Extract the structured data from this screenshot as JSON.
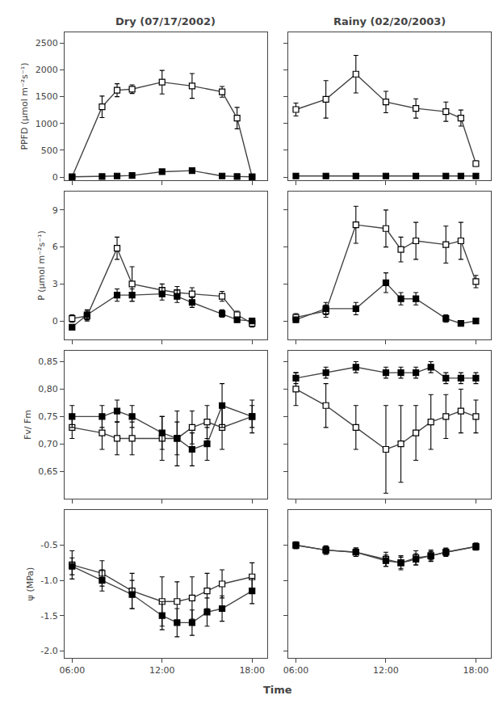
{
  "chart_data": [
    {
      "type": "line",
      "title": "Dry (07/17/2002)",
      "ylabel": "PPFD (μmol m⁻²s⁻¹)",
      "color": "#444444",
      "grid": false,
      "tick_labels": "y",
      "xlim": [
        5.5,
        19.0
      ],
      "xticks": [
        6,
        12,
        18
      ],
      "ylim": [
        -60,
        2700
      ],
      "yticks": [
        0,
        500,
        1000,
        1500,
        2000,
        2500
      ],
      "x": [
        6.0,
        8.0,
        9.0,
        10.0,
        12.0,
        14.0,
        16.0,
        17.0,
        18.0
      ],
      "series": [
        {
          "marker": "open",
          "values": [
            5,
            1310,
            1620,
            1640,
            1770,
            1700,
            1590,
            1100,
            5
          ],
          "errors": [
            5,
            200,
            120,
            80,
            220,
            230,
            100,
            200,
            5
          ]
        },
        {
          "marker": "filled",
          "values": [
            5,
            10,
            20,
            30,
            100,
            120,
            20,
            10,
            5
          ],
          "errors": [
            2,
            5,
            5,
            5,
            20,
            20,
            5,
            5,
            2
          ]
        }
      ]
    },
    {
      "type": "line",
      "title": "Rainy (02/20/2003)",
      "color": "#444444",
      "grid": false,
      "tick_labels": false,
      "xlim": [
        5.5,
        19.0
      ],
      "xticks": [
        6,
        12,
        18
      ],
      "ylim": [
        -60,
        2700
      ],
      "yticks": [
        0,
        500,
        1000,
        1500,
        2000,
        2500
      ],
      "x": [
        6.0,
        8.0,
        10.0,
        12.0,
        14.0,
        16.0,
        17.0,
        18.0
      ],
      "series": [
        {
          "marker": "open",
          "values": [
            1260,
            1450,
            1920,
            1400,
            1280,
            1220,
            1100,
            250
          ],
          "errors": [
            120,
            350,
            350,
            200,
            180,
            180,
            150,
            50
          ]
        },
        {
          "marker": "filled",
          "values": [
            20,
            20,
            20,
            20,
            20,
            20,
            20,
            20
          ],
          "errors": [
            5,
            5,
            5,
            5,
            5,
            5,
            5,
            5
          ]
        }
      ]
    },
    {
      "type": "line",
      "ylabel": "P (μmol m⁻²s⁻¹)",
      "color": "#444444",
      "grid": false,
      "tick_labels": "y",
      "xlim": [
        5.5,
        19.0
      ],
      "xticks": [
        6,
        12,
        18
      ],
      "ylim": [
        -1.5,
        10.5
      ],
      "yticks": [
        0,
        3,
        6,
        9
      ],
      "x": [
        6.0,
        7.0,
        9.0,
        10.0,
        12.0,
        13.0,
        14.0,
        16.0,
        17.0,
        18.0
      ],
      "series": [
        {
          "marker": "open",
          "values": [
            0.2,
            0.4,
            5.9,
            3.0,
            2.5,
            2.3,
            2.2,
            2.0,
            0.5,
            -0.2
          ],
          "errors": [
            0.3,
            0.4,
            0.9,
            1.4,
            0.5,
            0.5,
            0.5,
            0.4,
            0.3,
            0.3
          ]
        },
        {
          "marker": "filled",
          "values": [
            -0.5,
            0.5,
            2.1,
            2.1,
            2.2,
            2.0,
            1.5,
            0.6,
            0.1,
            0.0
          ],
          "errors": [
            0.2,
            0.4,
            0.5,
            0.5,
            0.5,
            0.5,
            0.4,
            0.3,
            0.2,
            0.2
          ]
        }
      ]
    },
    {
      "type": "line",
      "color": "#444444",
      "grid": false,
      "tick_labels": false,
      "xlim": [
        5.5,
        19.0
      ],
      "xticks": [
        6,
        12,
        18
      ],
      "ylim": [
        -1.5,
        10.5
      ],
      "yticks": [
        0,
        3,
        6,
        9
      ],
      "x": [
        6.0,
        8.0,
        10.0,
        12.0,
        13.0,
        14.0,
        16.0,
        17.0,
        18.0
      ],
      "series": [
        {
          "marker": "open",
          "values": [
            0.3,
            0.8,
            7.8,
            7.5,
            5.8,
            6.5,
            6.2,
            6.5,
            3.2
          ],
          "errors": [
            0.3,
            0.5,
            1.5,
            1.5,
            1.0,
            1.5,
            1.5,
            1.5,
            0.5
          ]
        },
        {
          "marker": "filled",
          "values": [
            0.1,
            1.0,
            1.0,
            3.1,
            1.8,
            1.8,
            0.2,
            -0.2,
            0.0
          ],
          "errors": [
            0.2,
            0.5,
            0.5,
            0.8,
            0.5,
            0.5,
            0.3,
            0.2,
            0.2
          ]
        }
      ]
    },
    {
      "type": "line",
      "ylabel": "Fv/ Fm",
      "color": "#444444",
      "grid": false,
      "tick_labels": "y",
      "xlim": [
        5.5,
        19.0
      ],
      "xticks": [
        6,
        12,
        18
      ],
      "ylim": [
        0.6,
        0.87
      ],
      "yticks": [
        {
          "value": 0.65,
          "label": "0,65"
        },
        {
          "value": 0.7,
          "label": "0,70"
        },
        {
          "value": 0.75,
          "label": "0,75"
        },
        {
          "value": 0.8,
          "label": "0,80"
        },
        {
          "value": 0.85,
          "label": "0,85"
        }
      ],
      "x": [
        6.0,
        8.0,
        9.0,
        10.0,
        12.0,
        13.0,
        14.0,
        15.0,
        16.0,
        18.0
      ],
      "series": [
        {
          "marker": "open",
          "values": [
            0.73,
            0.72,
            0.71,
            0.71,
            0.71,
            0.71,
            0.73,
            0.74,
            0.73,
            0.75
          ],
          "errors": [
            0.02,
            0.03,
            0.03,
            0.03,
            0.04,
            0.05,
            0.03,
            0.03,
            0.04,
            0.03
          ]
        },
        {
          "marker": "filled",
          "values": [
            0.75,
            0.75,
            0.76,
            0.75,
            0.72,
            0.71,
            0.69,
            0.7,
            0.77,
            0.75
          ],
          "errors": [
            0.02,
            0.02,
            0.02,
            0.02,
            0.03,
            0.03,
            0.03,
            0.03,
            0.04,
            0.02
          ]
        }
      ]
    },
    {
      "type": "line",
      "color": "#444444",
      "grid": false,
      "tick_labels": false,
      "xlim": [
        5.5,
        19.0
      ],
      "xticks": [
        6,
        12,
        18
      ],
      "ylim": [
        0.6,
        0.87
      ],
      "yticks": [
        0.65,
        0.7,
        0.75,
        0.8,
        0.85
      ],
      "x": [
        6.0,
        8.0,
        10.0,
        12.0,
        13.0,
        14.0,
        15.0,
        16.0,
        17.0,
        18.0
      ],
      "series": [
        {
          "marker": "open",
          "values": [
            0.8,
            0.77,
            0.73,
            0.69,
            0.7,
            0.72,
            0.74,
            0.75,
            0.76,
            0.75
          ],
          "errors": [
            0.03,
            0.04,
            0.04,
            0.08,
            0.07,
            0.05,
            0.05,
            0.04,
            0.04,
            0.03
          ]
        },
        {
          "marker": "filled",
          "values": [
            0.82,
            0.83,
            0.84,
            0.83,
            0.83,
            0.83,
            0.84,
            0.82,
            0.82,
            0.82
          ],
          "errors": [
            0.01,
            0.01,
            0.01,
            0.01,
            0.01,
            0.01,
            0.01,
            0.01,
            0.01,
            0.01
          ]
        }
      ]
    },
    {
      "type": "line",
      "ylabel": "ψ (MPa)",
      "xlabel": "Time",
      "color": "#444444",
      "grid": false,
      "xlim": [
        5.5,
        19.0
      ],
      "xticks": [
        {
          "value": 6,
          "label": "06:00"
        },
        {
          "value": 12,
          "label": "12:00"
        },
        {
          "value": 18,
          "label": "18:00"
        }
      ],
      "ylim": [
        -2.1,
        0.0
      ],
      "yticks": [
        {
          "value": -2.0,
          "label": "-2.0"
        },
        {
          "value": -1.5,
          "label": "-1.5"
        },
        {
          "value": -1.0,
          "label": "-1.0"
        },
        {
          "value": -0.5,
          "label": "-0.5"
        }
      ],
      "x": [
        6.0,
        8.0,
        10.0,
        12.0,
        13.0,
        14.0,
        15.0,
        16.0,
        18.0
      ],
      "series": [
        {
          "marker": "open",
          "values": [
            -0.78,
            -0.9,
            -1.15,
            -1.3,
            -1.3,
            -1.25,
            -1.15,
            -1.05,
            -0.95
          ],
          "errors": [
            0.2,
            0.18,
            0.25,
            0.35,
            0.28,
            0.3,
            0.25,
            0.2,
            0.2
          ]
        },
        {
          "marker": "filled",
          "values": [
            -0.8,
            -1.0,
            -1.2,
            -1.5,
            -1.6,
            -1.6,
            -1.45,
            -1.4,
            -1.15
          ],
          "errors": [
            0.12,
            0.15,
            0.2,
            0.2,
            0.2,
            0.18,
            0.2,
            0.18,
            0.18
          ]
        }
      ]
    },
    {
      "type": "line",
      "color": "#444444",
      "grid": false,
      "tick_labels": "x",
      "xlim": [
        5.5,
        19.0
      ],
      "xticks": [
        {
          "value": 6,
          "label": "06:00"
        },
        {
          "value": 12,
          "label": "12:00"
        },
        {
          "value": 18,
          "label": "18:00"
        }
      ],
      "ylim": [
        -2.1,
        0.0
      ],
      "yticks": [
        -2.0,
        -1.5,
        -1.0,
        -0.5
      ],
      "x": [
        6.0,
        8.0,
        10.0,
        12.0,
        13.0,
        14.0,
        15.0,
        16.0,
        18.0
      ],
      "series": [
        {
          "marker": "open",
          "values": [
            -0.5,
            -0.57,
            -0.6,
            -0.7,
            -0.75,
            -0.68,
            -0.65,
            -0.6,
            -0.52
          ],
          "errors": [
            0.05,
            0.06,
            0.06,
            0.1,
            0.1,
            0.1,
            0.08,
            0.06,
            0.05
          ]
        },
        {
          "marker": "filled",
          "values": [
            -0.5,
            -0.57,
            -0.6,
            -0.72,
            -0.75,
            -0.7,
            -0.65,
            -0.6,
            -0.52
          ],
          "errors": [
            0.04,
            0.05,
            0.06,
            0.08,
            0.08,
            0.08,
            0.06,
            0.05,
            0.04
          ]
        }
      ]
    }
  ]
}
